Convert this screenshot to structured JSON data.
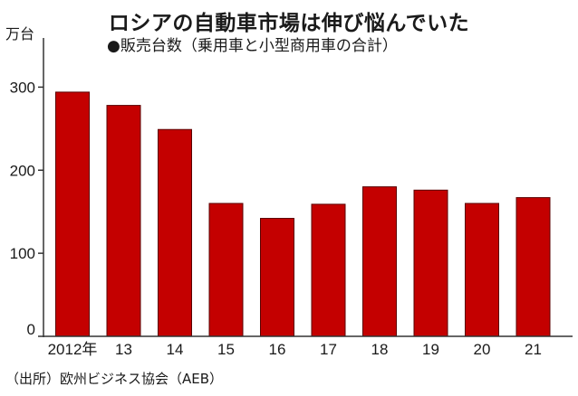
{
  "chart_data": {
    "type": "bar",
    "title": "ロシアの自動車市場は伸び悩んでいた",
    "subtitle": "●販売台数（乗用車と小型商用車の合計）",
    "unit_label": "万台",
    "source": "（出所）欧州ビジネス協会（AEB）",
    "categories": [
      "2012年",
      "13",
      "14",
      "15",
      "16",
      "17",
      "18",
      "19",
      "20",
      "21"
    ],
    "values": [
      294,
      278,
      249,
      160,
      142,
      159,
      180,
      176,
      160,
      167
    ],
    "ylim": [
      0,
      320
    ],
    "yticks": [
      0,
      100,
      200,
      300
    ],
    "grid": false,
    "bar_color": "#c40000",
    "bar_outline_color": "#5a0000",
    "axis_color": "#333333"
  }
}
